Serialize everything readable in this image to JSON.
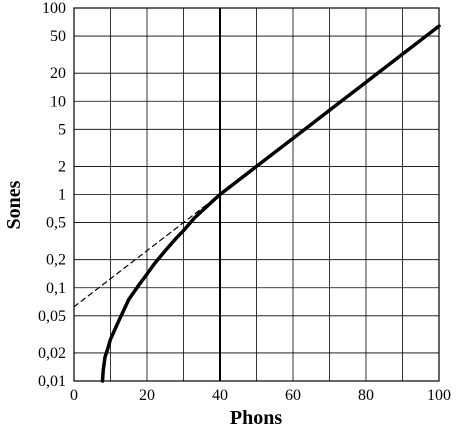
{
  "chart_data": {
    "type": "line",
    "title": "",
    "xlabel": "Phons",
    "ylabel": "Sones",
    "xlim": [
      0,
      100
    ],
    "ylim": [
      0.01,
      100
    ],
    "yscale": "log",
    "grid": true,
    "x_ticks": [
      0,
      20,
      40,
      60,
      80,
      100
    ],
    "y_ticks": [
      {
        "value": 0.01,
        "label": "0,01"
      },
      {
        "value": 0.02,
        "label": "0,02"
      },
      {
        "value": 0.05,
        "label": "0,05"
      },
      {
        "value": 0.1,
        "label": "0,1"
      },
      {
        "value": 0.2,
        "label": "0,2"
      },
      {
        "value": 0.5,
        "label": "0,5"
      },
      {
        "value": 1,
        "label": "1"
      },
      {
        "value": 2,
        "label": "2"
      },
      {
        "value": 5,
        "label": "5"
      },
      {
        "value": 10,
        "label": "10"
      },
      {
        "value": 20,
        "label": "20"
      },
      {
        "value": 50,
        "label": "50"
      },
      {
        "value": 100,
        "label": "100"
      }
    ],
    "reference_line_x": 40,
    "series": [
      {
        "style": "solid",
        "x": [
          7.8,
          8.0,
          8.5,
          9.2,
          10,
          12,
          15,
          18,
          20,
          22,
          25,
          28,
          30,
          33,
          36,
          38,
          40,
          50,
          60,
          70,
          80,
          90,
          100
        ],
        "y": [
          0.01,
          0.013,
          0.018,
          0.022,
          0.028,
          0.042,
          0.075,
          0.11,
          0.14,
          0.18,
          0.25,
          0.34,
          0.41,
          0.56,
          0.72,
          0.85,
          1,
          2,
          4,
          8,
          16,
          32,
          64
        ]
      },
      {
        "style": "dashed",
        "x": [
          0,
          40
        ],
        "y": [
          0.0625,
          1
        ]
      }
    ]
  }
}
